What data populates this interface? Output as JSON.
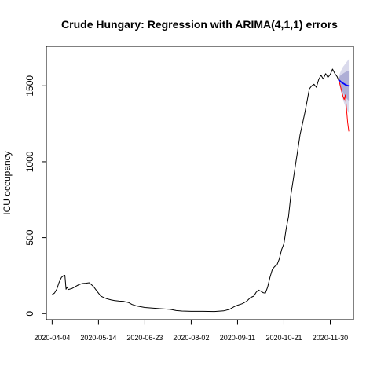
{
  "chart_data": {
    "type": "line",
    "title": "Crude Hungary: Regression with ARIMA(4,1,1) errors",
    "xlabel": "",
    "ylabel": "ICU occupancy",
    "x_range": [
      "2020-03-30",
      "2020-12-20"
    ],
    "ylim": [
      -40,
      1760
    ],
    "y_ticks": [
      0,
      500,
      1000,
      1500
    ],
    "x_ticks": [
      "2020-04-04",
      "2020-05-14",
      "2020-06-23",
      "2020-08-02",
      "2020-09-11",
      "2020-10-21",
      "2020-11-30"
    ],
    "grid": false,
    "legend": "none",
    "series": [
      {
        "color": "#000000",
        "points": [
          [
            "2020-04-04",
            125
          ],
          [
            "2020-04-06",
            135
          ],
          [
            "2020-04-08",
            160
          ],
          [
            "2020-04-10",
            205
          ],
          [
            "2020-04-12",
            238
          ],
          [
            "2020-04-14",
            250
          ],
          [
            "2020-04-15",
            252
          ],
          [
            "2020-04-16",
            160
          ],
          [
            "2020-04-17",
            175
          ],
          [
            "2020-04-18",
            158
          ],
          [
            "2020-04-21",
            165
          ],
          [
            "2020-04-24",
            178
          ],
          [
            "2020-04-27",
            190
          ],
          [
            "2020-04-30",
            198
          ],
          [
            "2020-05-03",
            200
          ],
          [
            "2020-05-06",
            203
          ],
          [
            "2020-05-08",
            190
          ],
          [
            "2020-05-10",
            175
          ],
          [
            "2020-05-12",
            155
          ],
          [
            "2020-05-14",
            135
          ],
          [
            "2020-05-16",
            115
          ],
          [
            "2020-05-18",
            108
          ],
          [
            "2020-05-21",
            98
          ],
          [
            "2020-05-25",
            90
          ],
          [
            "2020-05-28",
            85
          ],
          [
            "2020-06-01",
            82
          ],
          [
            "2020-06-05",
            80
          ],
          [
            "2020-06-09",
            72
          ],
          [
            "2020-06-12",
            60
          ],
          [
            "2020-06-16",
            50
          ],
          [
            "2020-06-23",
            40
          ],
          [
            "2020-07-05",
            33
          ],
          [
            "2020-07-15",
            28
          ],
          [
            "2020-07-20",
            20
          ],
          [
            "2020-07-25",
            17
          ],
          [
            "2020-08-02",
            15
          ],
          [
            "2020-08-12",
            15
          ],
          [
            "2020-08-22",
            14
          ],
          [
            "2020-08-30",
            18
          ],
          [
            "2020-09-04",
            28
          ],
          [
            "2020-09-08",
            45
          ],
          [
            "2020-09-11",
            55
          ],
          [
            "2020-09-15",
            65
          ],
          [
            "2020-09-19",
            82
          ],
          [
            "2020-09-22",
            105
          ],
          [
            "2020-09-25",
            115
          ],
          [
            "2020-09-27",
            140
          ],
          [
            "2020-09-29",
            155
          ],
          [
            "2020-10-01",
            148
          ],
          [
            "2020-10-03",
            138
          ],
          [
            "2020-10-05",
            135
          ],
          [
            "2020-10-07",
            175
          ],
          [
            "2020-10-09",
            240
          ],
          [
            "2020-10-11",
            290
          ],
          [
            "2020-10-13",
            310
          ],
          [
            "2020-10-15",
            320
          ],
          [
            "2020-10-17",
            360
          ],
          [
            "2020-10-19",
            420
          ],
          [
            "2020-10-21",
            460
          ],
          [
            "2020-10-23",
            560
          ],
          [
            "2020-10-25",
            640
          ],
          [
            "2020-10-27",
            780
          ],
          [
            "2020-10-29",
            880
          ],
          [
            "2020-10-31",
            980
          ],
          [
            "2020-11-02",
            1080
          ],
          [
            "2020-11-04",
            1180
          ],
          [
            "2020-11-06",
            1250
          ],
          [
            "2020-11-08",
            1320
          ],
          [
            "2020-11-10",
            1400
          ],
          [
            "2020-11-12",
            1480
          ],
          [
            "2020-11-14",
            1500
          ],
          [
            "2020-11-16",
            1510
          ],
          [
            "2020-11-18",
            1490
          ],
          [
            "2020-11-20",
            1540
          ],
          [
            "2020-11-22",
            1570
          ],
          [
            "2020-11-24",
            1545
          ],
          [
            "2020-11-26",
            1580
          ],
          [
            "2020-11-28",
            1555
          ],
          [
            "2020-11-30",
            1575
          ],
          [
            "2020-12-02",
            1610
          ],
          [
            "2020-12-04",
            1580
          ],
          [
            "2020-12-06",
            1560
          ],
          [
            "2020-12-07",
            1540
          ]
        ]
      },
      {
        "color": "#ff0000",
        "points": [
          [
            "2020-12-07",
            1540
          ],
          [
            "2020-12-08",
            1520
          ],
          [
            "2020-12-09",
            1490
          ],
          [
            "2020-12-10",
            1460
          ],
          [
            "2020-12-11",
            1430
          ],
          [
            "2020-12-12",
            1410
          ],
          [
            "2020-12-13",
            1440
          ],
          [
            "2020-12-14",
            1350
          ],
          [
            "2020-12-15",
            1260
          ],
          [
            "2020-12-16",
            1200
          ]
        ]
      },
      {
        "color": "#0000ff",
        "points": [
          [
            "2020-12-07",
            1540
          ],
          [
            "2020-12-08",
            1535
          ],
          [
            "2020-12-09",
            1528
          ],
          [
            "2020-12-10",
            1522
          ],
          [
            "2020-12-11",
            1517
          ],
          [
            "2020-12-12",
            1512
          ],
          [
            "2020-12-13",
            1507
          ],
          [
            "2020-12-14",
            1504
          ],
          [
            "2020-12-15",
            1501
          ],
          [
            "2020-12-16",
            1500
          ]
        ]
      }
    ],
    "forecast_bands": [
      {
        "color": "#dadaec",
        "x": [
          "2020-12-07",
          "2020-12-08",
          "2020-12-09",
          "2020-12-10",
          "2020-12-11",
          "2020-12-12",
          "2020-12-13",
          "2020-12-14",
          "2020-12-15",
          "2020-12-16"
        ],
        "lower": [
          1540,
          1500,
          1470,
          1440,
          1410,
          1385,
          1365,
          1350,
          1335,
          1320
        ],
        "upper": [
          1540,
          1575,
          1595,
          1610,
          1625,
          1635,
          1645,
          1655,
          1665,
          1675
        ]
      },
      {
        "color": "#aeaed6",
        "x": [
          "2020-12-07",
          "2020-12-08",
          "2020-12-09",
          "2020-12-10",
          "2020-12-11",
          "2020-12-12",
          "2020-12-13",
          "2020-12-14",
          "2020-12-15",
          "2020-12-16"
        ],
        "lower": [
          1540,
          1515,
          1495,
          1475,
          1455,
          1440,
          1428,
          1418,
          1410,
          1402
        ],
        "upper": [
          1540,
          1560,
          1570,
          1575,
          1580,
          1585,
          1590,
          1595,
          1598,
          1600
        ]
      }
    ]
  }
}
